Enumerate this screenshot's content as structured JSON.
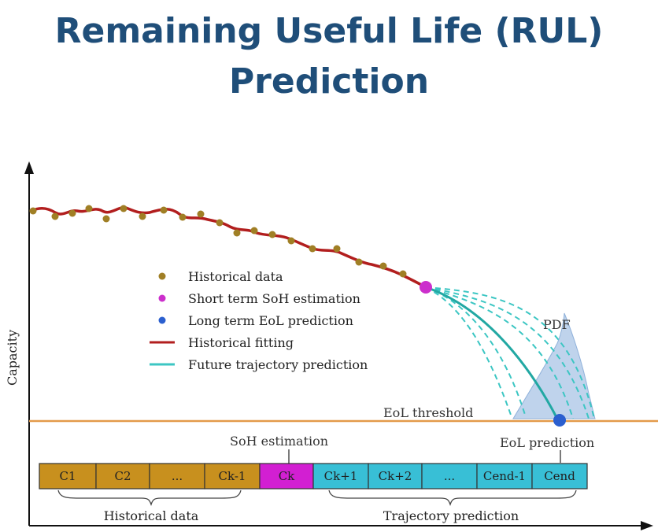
{
  "title": {
    "line1": "Remaining Useful Life (RUL)",
    "line2": "Prediction"
  },
  "axis": {
    "ylabel": "Capacity"
  },
  "legend": [
    {
      "label": "Historical data",
      "kind": "dot",
      "color": "#a07f25"
    },
    {
      "label": "Short term SoH estimation",
      "kind": "dot",
      "color": "#cc2fcc"
    },
    {
      "label": "Long term EoL prediction",
      "kind": "dot",
      "color": "#2b5fcf"
    },
    {
      "label": "Historical fitting",
      "kind": "line",
      "color": "#b21e1e"
    },
    {
      "label": "Future trajectory prediction",
      "kind": "line",
      "color": "#3cc6c3"
    }
  ],
  "annotations": {
    "pdf": "PDF",
    "eol_threshold": "EoL threshold",
    "eol_prediction": "EoL prediction",
    "soh_estimation": "SoH estimation"
  },
  "sequence": {
    "historical": [
      "C1",
      "C2",
      "...",
      "Ck-1"
    ],
    "current": "Ck",
    "future": [
      "Ck+1",
      "Ck+2",
      "...",
      "Cend-1",
      "Cend"
    ],
    "historical_label": "Historical data",
    "trajectory_label": "Trajectory prediction"
  },
  "colors": {
    "title": "#1f4e79",
    "historical_box": "#c8901e",
    "current_box": "#d21fd2",
    "future_box": "#38bfd6",
    "threshold": "#e39a4a",
    "pdf_fill": "#a9c4e6"
  }
}
